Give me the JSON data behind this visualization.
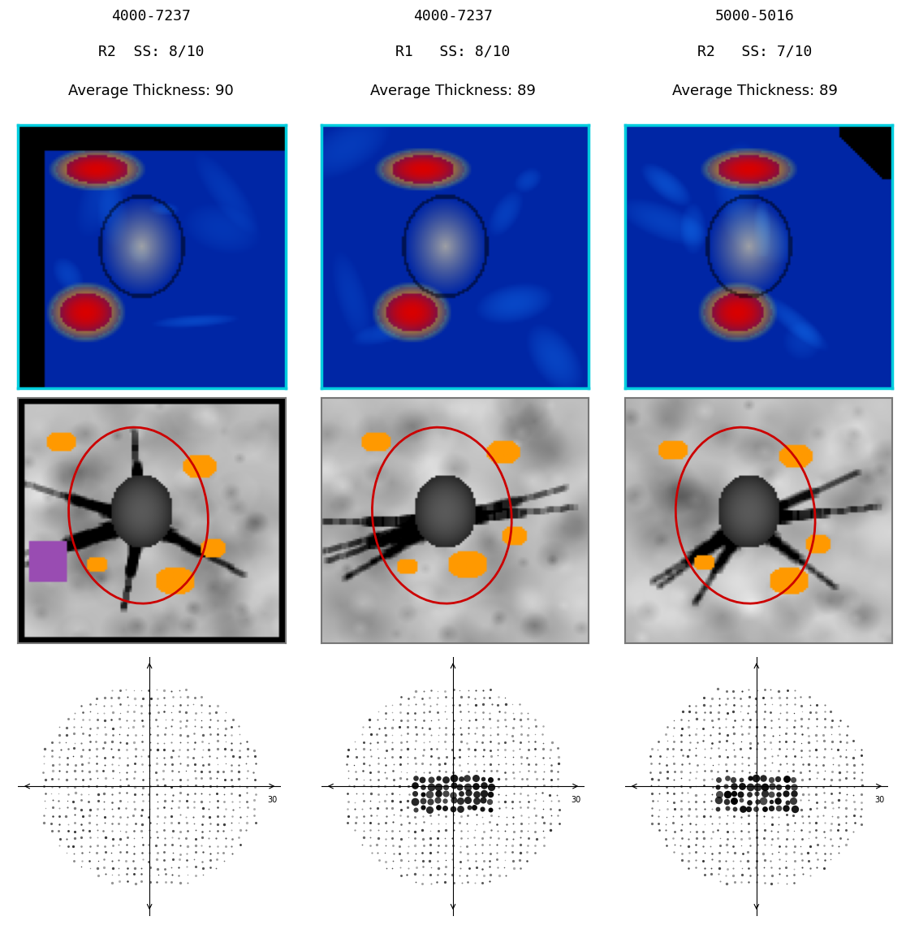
{
  "columns": [
    {
      "id_line1": "4000-7237",
      "id_line2": "R2  SS: 8/10",
      "id_line3": "Average Thickness: 90"
    },
    {
      "id_line1": "4000-7237",
      "id_line2": "R1   SS: 8/10",
      "id_line3": "Average Thickness: 89"
    },
    {
      "id_line1": "5000-5016",
      "id_line2": "R2   SS: 7/10",
      "id_line3": "Average Thickness: 89"
    }
  ],
  "oct_border_color": "#00ccdd",
  "oct_bg_color": "#000000",
  "fundus_border_color": "#888888",
  "fundus_bg_color": "#cccccc",
  "red_circle_color": "#cc0000",
  "orange_spot_color": "#ff9900",
  "purple_spot_color": "#9966cc",
  "title_fontsize": 14,
  "label_fontsize": 12,
  "background_color": "#ffffff"
}
